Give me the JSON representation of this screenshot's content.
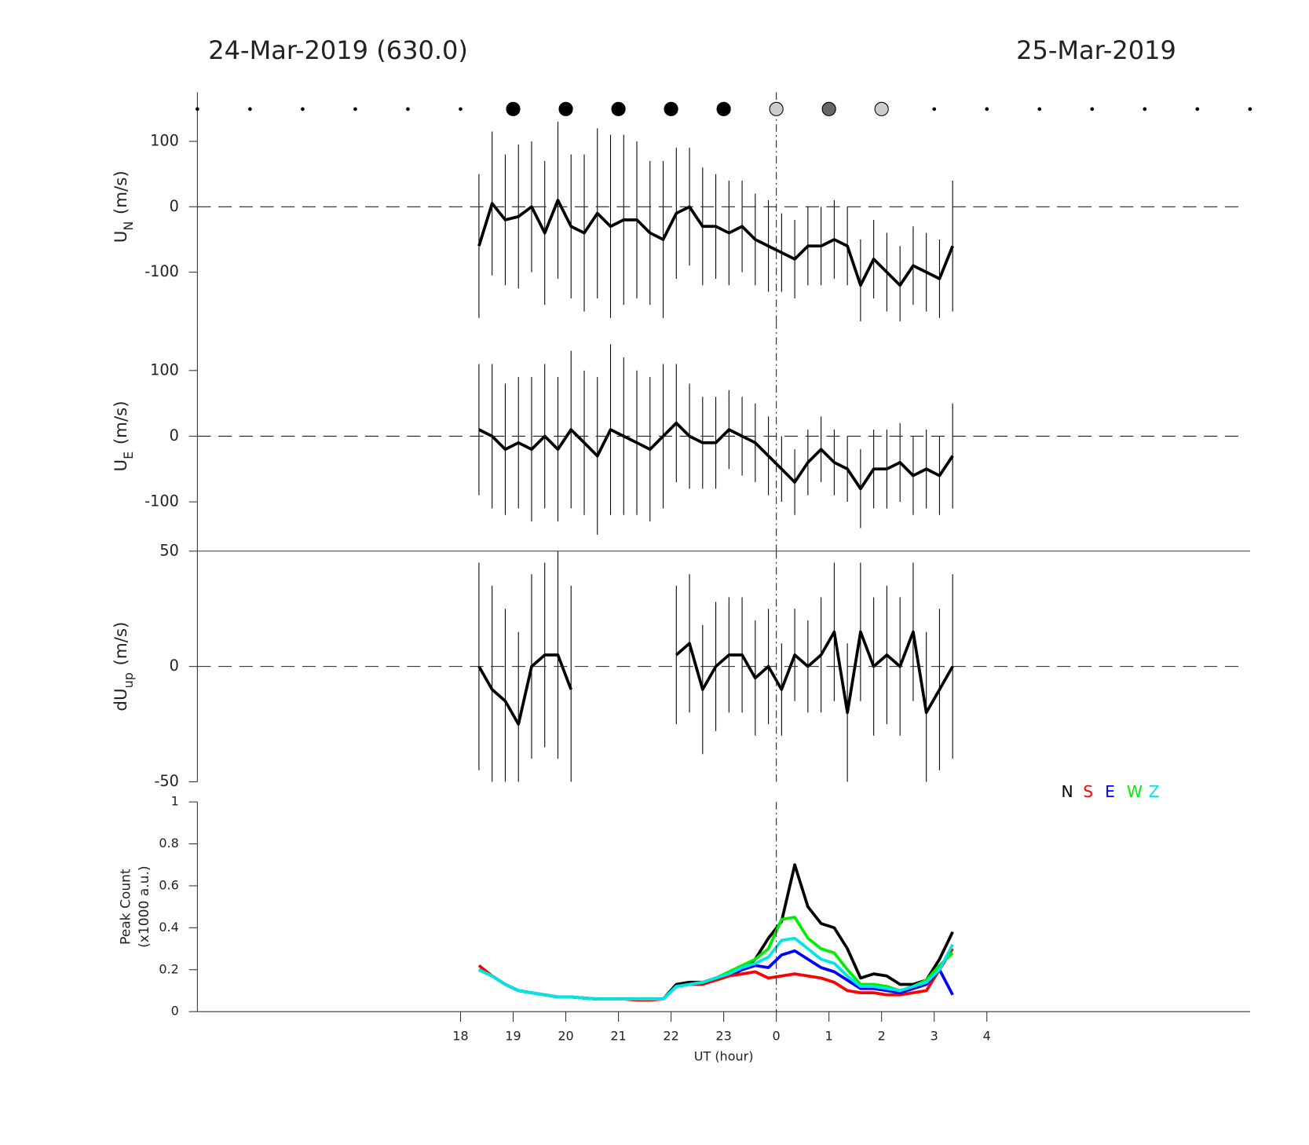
{
  "chart_data": [
    {
      "type": "errorbar",
      "title": "24-Mar-2019 (630.0)",
      "title_right": "25-Mar-2019",
      "ylabel_main": "U",
      "ylabel_sub": "N",
      "ylabel_unit": "(m/s)",
      "xlim": [
        13,
        33
      ],
      "ylim": [
        -175,
        175
      ],
      "yticks": [
        -100,
        0,
        100
      ],
      "reference_line": 0,
      "vline": 24,
      "color": "#000000",
      "x": [
        18.35,
        18.6,
        18.85,
        19.1,
        19.35,
        19.6,
        19.85,
        20.1,
        20.35,
        20.6,
        20.85,
        21.1,
        21.35,
        21.6,
        21.85,
        22.1,
        22.35,
        22.6,
        22.85,
        23.1,
        23.35,
        23.6,
        23.85,
        24.1,
        24.35,
        24.6,
        24.85,
        25.1,
        25.35,
        25.6,
        25.85,
        26.1,
        26.35,
        26.6,
        26.85,
        27.1,
        27.35
      ],
      "values": [
        -60,
        5,
        -20,
        -15,
        0,
        -40,
        10,
        -30,
        -40,
        -10,
        -30,
        -20,
        -20,
        -40,
        -50,
        -10,
        0,
        -30,
        -30,
        -40,
        -30,
        -50,
        -60,
        -70,
        -80,
        -60,
        -60,
        -50,
        -60,
        -120,
        -80,
        -100,
        -120,
        -90,
        -100,
        -110,
        -60
      ],
      "errors": [
        110,
        110,
        100,
        110,
        100,
        110,
        120,
        110,
        120,
        130,
        140,
        130,
        120,
        110,
        120,
        100,
        90,
        90,
        80,
        80,
        70,
        70,
        70,
        60,
        60,
        60,
        60,
        60,
        60,
        70,
        60,
        60,
        60,
        60,
        60,
        60,
        100
      ]
    },
    {
      "type": "errorbar",
      "ylabel_main": "U",
      "ylabel_sub": "E",
      "ylabel_unit": "(m/s)",
      "xlim": [
        13,
        33
      ],
      "ylim": [
        -175,
        175
      ],
      "yticks": [
        -100,
        0,
        100
      ],
      "reference_line": 0,
      "vline": 24,
      "color": "#000000",
      "x": [
        18.35,
        18.6,
        18.85,
        19.1,
        19.35,
        19.6,
        19.85,
        20.1,
        20.35,
        20.6,
        20.85,
        21.1,
        21.35,
        21.6,
        21.85,
        22.1,
        22.35,
        22.6,
        22.85,
        23.1,
        23.35,
        23.6,
        23.85,
        24.1,
        24.35,
        24.6,
        24.85,
        25.1,
        25.35,
        25.6,
        25.85,
        26.1,
        26.35,
        26.6,
        26.85,
        27.1,
        27.35
      ],
      "values": [
        10,
        0,
        -20,
        -10,
        -20,
        0,
        -20,
        10,
        -10,
        -30,
        10,
        0,
        -10,
        -20,
        0,
        20,
        0,
        -10,
        -10,
        10,
        0,
        -10,
        -30,
        -50,
        -70,
        -40,
        -20,
        -40,
        -50,
        -80,
        -50,
        -50,
        -40,
        -60,
        -50,
        -60,
        -30
      ],
      "errors": [
        100,
        110,
        100,
        100,
        110,
        110,
        110,
        120,
        110,
        120,
        130,
        120,
        110,
        110,
        110,
        90,
        80,
        70,
        70,
        60,
        60,
        60,
        60,
        50,
        50,
        50,
        50,
        50,
        50,
        60,
        60,
        60,
        60,
        60,
        60,
        60,
        80
      ]
    },
    {
      "type": "errorbar",
      "ylabel_main": "dU",
      "ylabel_sub": "up",
      "ylabel_unit": "(m/s)",
      "xlim": [
        13,
        33
      ],
      "ylim": [
        -50,
        50
      ],
      "yticks": [
        -50,
        0,
        50
      ],
      "reference_line": 0,
      "vline": 24,
      "color": "#000000",
      "x": [
        18.35,
        18.6,
        18.85,
        19.1,
        19.35,
        19.6,
        19.85,
        20.1,
        20.35,
        20.6,
        20.85,
        21.1,
        21.35,
        21.6,
        21.85,
        22.1,
        22.35,
        22.6,
        22.85,
        23.1,
        23.35,
        23.6,
        23.85,
        24.1,
        24.35,
        24.6,
        24.85,
        25.1,
        25.35,
        25.6,
        25.85,
        26.1,
        26.35,
        26.6,
        26.85,
        27.1,
        27.35
      ],
      "values": [
        0,
        -10,
        -15,
        -25,
        0,
        5,
        5,
        -10,
        null,
        null,
        null,
        null,
        null,
        null,
        null,
        5,
        10,
        -10,
        0,
        5,
        5,
        -5,
        0,
        -10,
        5,
        0,
        5,
        15,
        -20,
        15,
        0,
        5,
        0,
        15,
        -20,
        -10,
        0
      ],
      "errors": [
        45,
        45,
        40,
        40,
        40,
        40,
        45,
        45,
        null,
        null,
        null,
        null,
        null,
        null,
        null,
        30,
        30,
        28,
        28,
        25,
        25,
        25,
        25,
        20,
        20,
        20,
        25,
        30,
        30,
        30,
        30,
        30,
        30,
        30,
        35,
        35,
        40
      ]
    },
    {
      "type": "line",
      "ylabel_lines": [
        "Peak Count",
        "(x1000 a.u.)"
      ],
      "xlabel": "UT (hour)",
      "xlim": [
        13,
        33
      ],
      "ylim": [
        0,
        1
      ],
      "yticks": [
        0,
        0.2,
        0.4,
        0.6,
        0.8,
        1
      ],
      "vline": 24,
      "legend": "upper right",
      "xticks": [
        18,
        19,
        20,
        21,
        22,
        23,
        {
          "value": 24,
          "label": "0"
        },
        {
          "value": 25,
          "label": "1"
        },
        {
          "value": 26,
          "label": "2"
        },
        {
          "value": 27,
          "label": "3"
        },
        {
          "value": 28,
          "label": "4"
        }
      ],
      "x": [
        18.35,
        18.6,
        18.85,
        19.1,
        19.35,
        19.6,
        19.85,
        20.1,
        20.35,
        20.6,
        20.85,
        21.1,
        21.35,
        21.6,
        21.85,
        22.1,
        22.35,
        22.6,
        22.85,
        23.1,
        23.35,
        23.6,
        23.85,
        24.1,
        24.35,
        24.6,
        24.85,
        25.1,
        25.35,
        25.6,
        25.85,
        26.1,
        26.35,
        26.6,
        26.85,
        27.1,
        27.35
      ],
      "series": [
        {
          "name": "N",
          "color": "#000000",
          "values": [
            0.2,
            0.17,
            0.13,
            0.1,
            0.09,
            0.08,
            0.07,
            0.07,
            0.065,
            0.06,
            0.06,
            0.06,
            0.06,
            0.06,
            0.06,
            0.13,
            0.14,
            0.14,
            0.15,
            0.17,
            0.2,
            0.25,
            0.35,
            0.43,
            0.7,
            0.5,
            0.42,
            0.4,
            0.3,
            0.16,
            0.18,
            0.17,
            0.13,
            0.13,
            0.15,
            0.25,
            0.38
          ]
        },
        {
          "name": "S",
          "color": "#ff0000",
          "values": [
            0.22,
            0.17,
            0.13,
            0.1,
            0.09,
            0.08,
            0.07,
            0.07,
            0.065,
            0.06,
            0.06,
            0.06,
            0.055,
            0.055,
            0.06,
            0.12,
            0.13,
            0.13,
            0.15,
            0.17,
            0.18,
            0.19,
            0.16,
            0.17,
            0.18,
            0.17,
            0.16,
            0.14,
            0.1,
            0.09,
            0.09,
            0.08,
            0.08,
            0.09,
            0.1,
            0.2,
            0.3
          ]
        },
        {
          "name": "E",
          "color": "#0000ff",
          "values": [
            0.2,
            0.17,
            0.13,
            0.1,
            0.09,
            0.08,
            0.07,
            0.07,
            0.065,
            0.06,
            0.06,
            0.06,
            0.06,
            0.06,
            0.06,
            0.12,
            0.13,
            0.14,
            0.16,
            0.18,
            0.2,
            0.22,
            0.21,
            0.27,
            0.29,
            0.25,
            0.21,
            0.19,
            0.15,
            0.11,
            0.11,
            0.1,
            0.09,
            0.11,
            0.13,
            0.2,
            0.08
          ]
        },
        {
          "name": "W",
          "color": "#00ee00",
          "values": [
            0.2,
            0.17,
            0.13,
            0.1,
            0.09,
            0.08,
            0.07,
            0.07,
            0.065,
            0.06,
            0.06,
            0.06,
            0.06,
            0.06,
            0.06,
            0.12,
            0.13,
            0.14,
            0.16,
            0.19,
            0.22,
            0.25,
            0.3,
            0.44,
            0.45,
            0.35,
            0.3,
            0.28,
            0.2,
            0.13,
            0.13,
            0.12,
            0.1,
            0.12,
            0.15,
            0.22,
            0.28
          ]
        },
        {
          "name": "Z",
          "color": "#00e5e5",
          "values": [
            0.2,
            0.17,
            0.13,
            0.1,
            0.09,
            0.08,
            0.07,
            0.07,
            0.065,
            0.06,
            0.06,
            0.06,
            0.06,
            0.06,
            0.06,
            0.12,
            0.13,
            0.14,
            0.16,
            0.18,
            0.21,
            0.23,
            0.26,
            0.34,
            0.35,
            0.3,
            0.25,
            0.23,
            0.17,
            0.12,
            0.12,
            0.11,
            0.1,
            0.12,
            0.14,
            0.2,
            0.32
          ]
        }
      ]
    }
  ]
}
